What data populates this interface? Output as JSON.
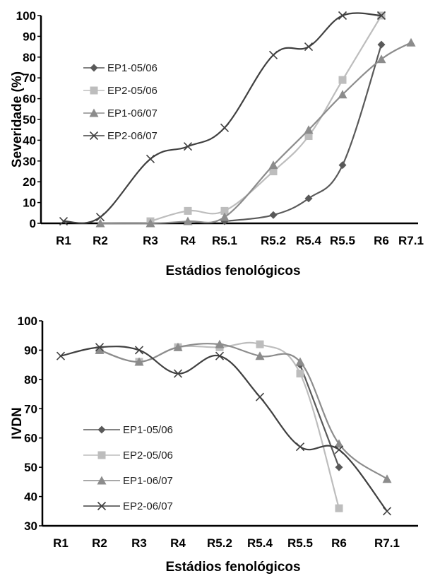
{
  "colors": {
    "EP1-05/06": "#595959",
    "EP2-05/06": "#bdbdbd",
    "EP1-06/07": "#8c8c8c",
    "EP2-06/07": "#404040"
  },
  "chart_data": [
    {
      "type": "line",
      "ylabel": "Severidade (%)",
      "xlabel": "Estádios fenológicos",
      "ylim": [
        0,
        100
      ],
      "yticks": [
        0,
        10,
        20,
        30,
        40,
        50,
        60,
        70,
        80,
        90,
        100
      ],
      "categories": [
        "R1",
        "R2",
        "R3",
        "R4",
        "R5.1",
        "R5.2",
        "R5.4",
        "R5.5",
        "R6",
        "R7.1"
      ],
      "legend_position": "left",
      "series": [
        {
          "name": "EP1-05/06",
          "marker": "diamond",
          "points": [
            [
              "R5.1",
              1
            ],
            [
              "R5.2",
              4
            ],
            [
              "R5.4",
              12
            ],
            [
              "R5.5",
              28
            ],
            [
              "R6",
              86
            ]
          ]
        },
        {
          "name": "EP2-05/06",
          "marker": "square",
          "points": [
            [
              "R3",
              1
            ],
            [
              "R4",
              6
            ],
            [
              "R5.1",
              6
            ],
            [
              "R5.2",
              25
            ],
            [
              "R5.4",
              42
            ],
            [
              "R5.5",
              69
            ],
            [
              "R6",
              100
            ]
          ]
        },
        {
          "name": "EP1-06/07",
          "marker": "triangle",
          "points": [
            [
              "R2",
              0
            ],
            [
              "R3",
              0
            ],
            [
              "R4",
              1
            ],
            [
              "R5.1",
              3
            ],
            [
              "R5.2",
              28
            ],
            [
              "R5.4",
              45
            ],
            [
              "R5.5",
              62
            ],
            [
              "R6",
              79
            ],
            [
              "R7.1",
              87
            ]
          ]
        },
        {
          "name": "EP2-06/07",
          "marker": "x",
          "points": [
            [
              "R1",
              1
            ],
            [
              "R2",
              3
            ],
            [
              "R3",
              31
            ],
            [
              "R4",
              37
            ],
            [
              "R5.1",
              46
            ],
            [
              "R5.2",
              81
            ],
            [
              "R5.4",
              85
            ],
            [
              "R5.5",
              100
            ],
            [
              "R6",
              100
            ]
          ]
        }
      ]
    },
    {
      "type": "line",
      "ylabel": "IVDN",
      "xlabel": "Estádios fenológicos",
      "ylim": [
        30,
        100
      ],
      "yticks": [
        30,
        40,
        50,
        60,
        70,
        80,
        90,
        100
      ],
      "categories": [
        "R1",
        "R2",
        "R3",
        "R4",
        "R5.2",
        "R5.4",
        "R5.5",
        "R6",
        "R7.1"
      ],
      "legend_position": "left",
      "series": [
        {
          "name": "EP1-05/06",
          "marker": "diamond",
          "points": [
            [
              "R5.5",
              85
            ],
            [
              "R6",
              50
            ]
          ]
        },
        {
          "name": "EP2-05/06",
          "marker": "square",
          "points": [
            [
              "R2",
              90
            ],
            [
              "R3",
              86
            ],
            [
              "R4",
              91
            ],
            [
              "R5.2",
              91
            ],
            [
              "R5.4",
              92
            ],
            [
              "R5.5",
              82
            ],
            [
              "R6",
              36
            ]
          ]
        },
        {
          "name": "EP1-06/07",
          "marker": "triangle",
          "points": [
            [
              "R2",
              90
            ],
            [
              "R3",
              86
            ],
            [
              "R4",
              91
            ],
            [
              "R5.2",
              92
            ],
            [
              "R5.4",
              88
            ],
            [
              "R5.5",
              86
            ],
            [
              "R6",
              58
            ],
            [
              "R7.1",
              46
            ]
          ]
        },
        {
          "name": "EP2-06/07",
          "marker": "x",
          "points": [
            [
              "R1",
              88
            ],
            [
              "R2",
              91
            ],
            [
              "R3",
              90
            ],
            [
              "R4",
              82
            ],
            [
              "R5.2",
              88
            ],
            [
              "R5.4",
              74
            ],
            [
              "R5.5",
              57
            ],
            [
              "R6",
              56
            ],
            [
              "R7.1",
              35
            ]
          ]
        }
      ]
    }
  ]
}
